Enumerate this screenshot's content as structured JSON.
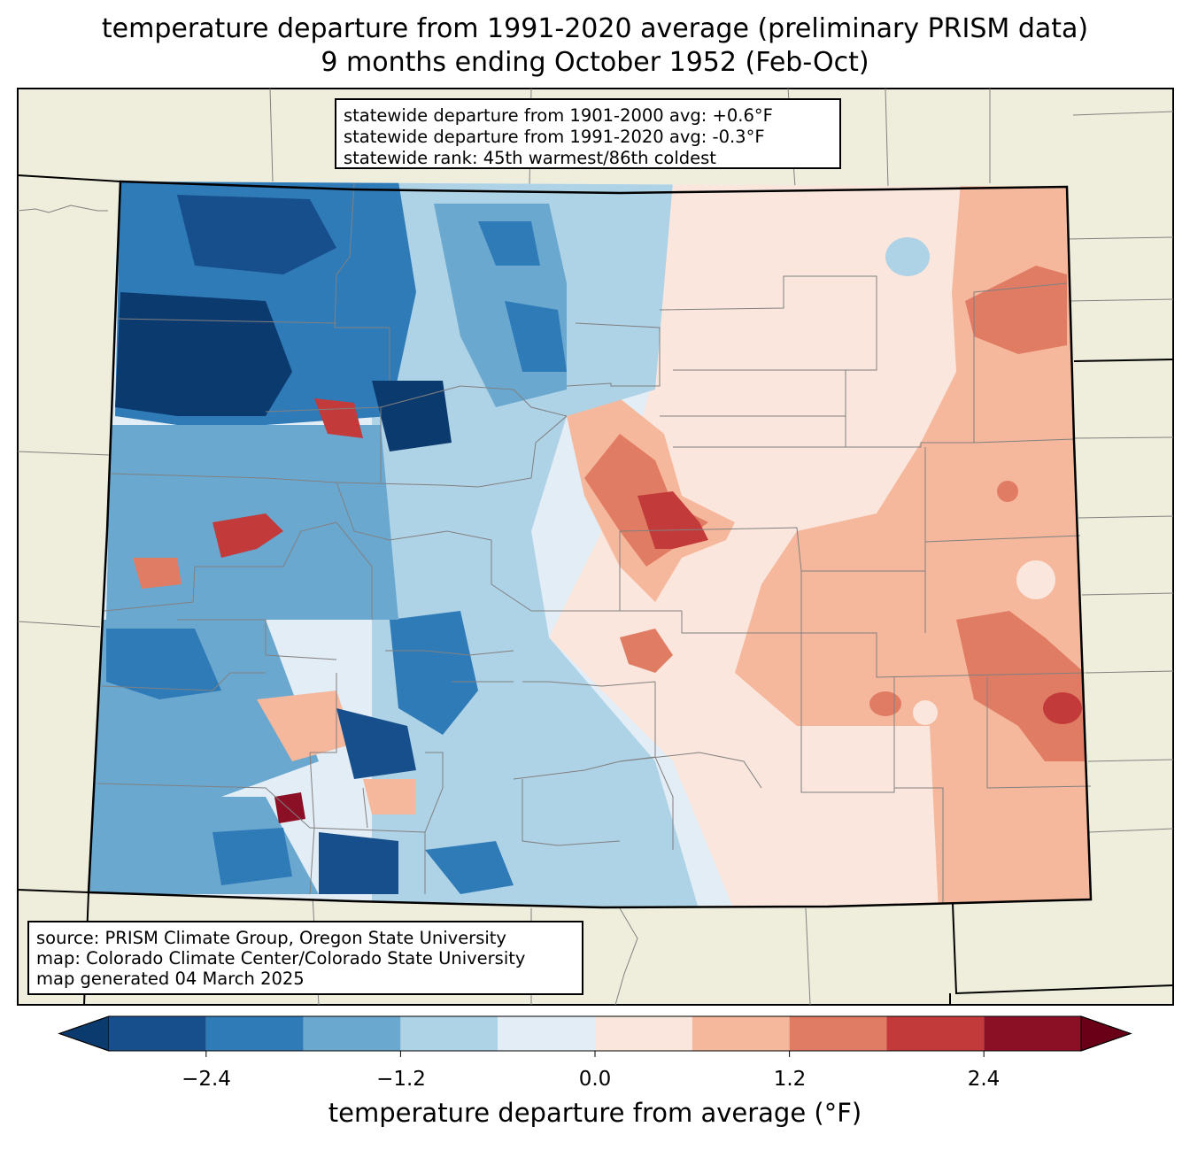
{
  "title": {
    "line1": "temperature departure from 1991-2020 average (preliminary PRISM data)",
    "line2": "9 months ending October 1952 (Feb-Oct)"
  },
  "stats_box": {
    "line1": "statewide departure from 1901-2000 avg: +0.6°F",
    "line2": "statewide departure from 1991-2020 avg: -0.3°F",
    "line3": "statewide rank: 45th warmest/86th coldest"
  },
  "source_box": {
    "line1": "source: PRISM Climate Group, Oregon State University",
    "line2": "map: Colorado Climate Center/Colorado State University",
    "line3": "map generated 04 March 2025"
  },
  "colorbar": {
    "label": "temperature departure from average (°F)",
    "ticks": [
      "−2.4",
      "−1.2",
      "0.0",
      "1.2",
      "2.4"
    ],
    "levels": [
      -3.0,
      -2.4,
      -1.8,
      -1.2,
      -0.6,
      0.0,
      0.6,
      1.2,
      1.8,
      2.4,
      3.0
    ],
    "colors": [
      "#0b3a6e",
      "#164f8c",
      "#2f7bb8",
      "#6aa8d0",
      "#aed2e6",
      "#e3edf5",
      "#fae6dc",
      "#f6b89c",
      "#e07c63",
      "#c23a3a",
      "#8b1026",
      "#6a0018"
    ]
  },
  "map_colors": {
    "land": "#efeedc",
    "border": "#000000",
    "county": "#808080"
  }
}
